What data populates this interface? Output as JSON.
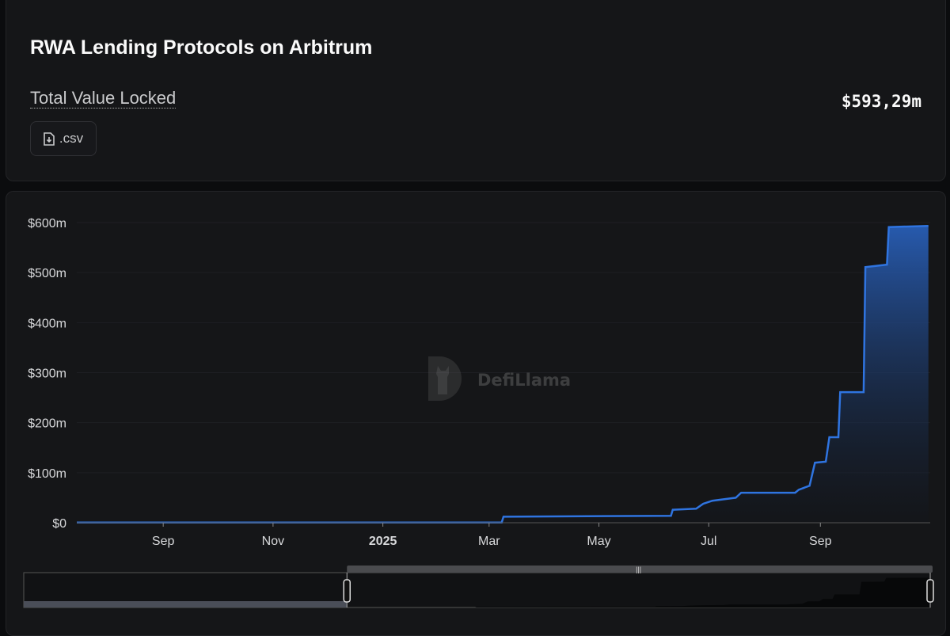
{
  "header": {
    "title": "RWA Lending Protocols on Arbitrum",
    "metric_label": "Total Value Locked",
    "metric_value": "$593,29m",
    "csv_button": ".csv",
    "csv_icon": "file-download-icon"
  },
  "watermark": "DefiLlama",
  "colors": {
    "line": "#2f74e0",
    "background": "#151618"
  },
  "chart_data": {
    "type": "area",
    "title": "",
    "xlabel": "",
    "ylabel": "",
    "ylim": [
      0,
      600
    ],
    "xlim": [
      "2024-07-15",
      "2025-11-01"
    ],
    "y_ticks": [
      "$0",
      "$100m",
      "$200m",
      "$300m",
      "$400m",
      "$500m",
      "$600m"
    ],
    "y_tick_values": [
      0,
      100,
      200,
      300,
      400,
      500,
      600
    ],
    "x_ticks": [
      "Sep",
      "Nov",
      "2025",
      "Mar",
      "May",
      "Jul",
      "Sep"
    ],
    "x_tick_dates": [
      "2024-09-01",
      "2024-11-01",
      "2025-01-01",
      "2025-03-01",
      "2025-05-01",
      "2025-07-01",
      "2025-09-01"
    ],
    "grid": true,
    "units": "USD millions",
    "series": [
      {
        "points": [
          [
            "2024-07-15",
            0.5
          ],
          [
            "2025-03-08",
            0.5
          ],
          [
            "2025-03-09",
            12
          ],
          [
            "2025-06-10",
            14
          ],
          [
            "2025-06-11",
            26
          ],
          [
            "2025-06-24",
            28
          ],
          [
            "2025-06-28",
            38
          ],
          [
            "2025-07-03",
            44
          ],
          [
            "2025-07-16",
            50
          ],
          [
            "2025-07-19",
            60
          ],
          [
            "2025-08-18",
            60
          ],
          [
            "2025-08-20",
            66
          ],
          [
            "2025-08-26",
            74
          ],
          [
            "2025-08-29",
            120
          ],
          [
            "2025-09-04",
            122
          ],
          [
            "2025-09-06",
            171
          ],
          [
            "2025-09-11",
            171
          ],
          [
            "2025-09-12",
            261
          ],
          [
            "2025-09-25",
            261
          ],
          [
            "2025-09-26",
            511
          ],
          [
            "2025-10-08",
            516
          ],
          [
            "2025-10-09",
            591
          ],
          [
            "2025-10-31",
            593.29
          ]
        ]
      }
    ],
    "range_selector": {
      "start": "2024-12-31",
      "end": "2025-11-01"
    }
  }
}
